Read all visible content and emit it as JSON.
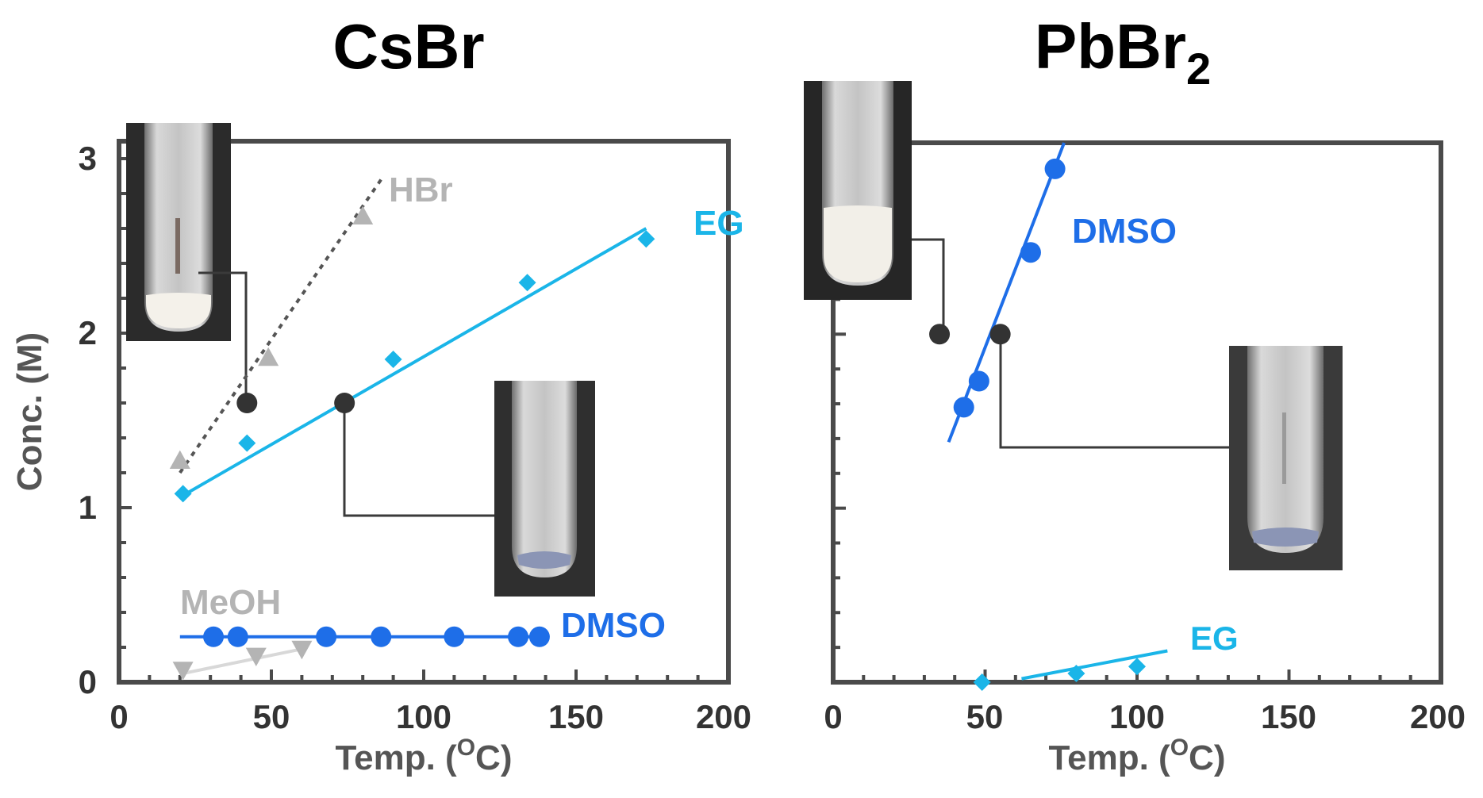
{
  "chart_data": [
    {
      "type": "scatter",
      "title": "CsBr",
      "title_sub": "",
      "xlabel": "Temp. (",
      "xlabel_sup": "O",
      "xlabel_end": "C)",
      "ylabel": "Conc. (M)",
      "xlim": [
        0,
        200
      ],
      "ylim": [
        0,
        3.1
      ],
      "xticks": [
        "0",
        "50",
        "100",
        "150",
        "200"
      ],
      "yticks": [
        "0",
        "1",
        "2",
        "3"
      ],
      "series": [
        {
          "name": "HBr",
          "color": "#b4b4b4",
          "marker": "triangle",
          "line": "dotted",
          "line_color": "#555555",
          "x": [
            20,
            49,
            80
          ],
          "y": [
            1.27,
            1.86,
            2.67
          ],
          "fit": [
            [
              20,
              1.2
            ],
            [
              86,
              2.88
            ]
          ]
        },
        {
          "name": "EG",
          "color": "#1ab5e8",
          "marker": "diamond",
          "line": "solid",
          "x": [
            21,
            42,
            90,
            134,
            173
          ],
          "y": [
            1.08,
            1.37,
            1.85,
            2.29,
            2.54
          ],
          "fit": [
            [
              21,
              1.07
            ],
            [
              173,
              2.6
            ]
          ]
        },
        {
          "name": "DMSO",
          "color": "#1e6ee8",
          "marker": "circle",
          "line": "solid",
          "x": [
            31,
            39,
            68,
            86,
            110,
            131,
            138
          ],
          "y": [
            0.26,
            0.26,
            0.26,
            0.26,
            0.26,
            0.26,
            0.26
          ],
          "fit": [
            [
              20,
              0.26
            ],
            [
              138,
              0.26
            ]
          ]
        },
        {
          "name": "MeOH",
          "color": "#b4b4b4",
          "marker": "triangle-down",
          "line": "solid",
          "line_color": "#d8d8d8",
          "x": [
            21,
            45,
            60
          ],
          "y": [
            0.07,
            0.15,
            0.19
          ],
          "fit": [
            [
              21,
              0.05
            ],
            [
              60,
              0.19
            ]
          ]
        }
      ],
      "label_positions": "HBr top-left, EG upper-right, DMSO lower-right, MeOH lower-left",
      "markers": [
        {
          "x": 42,
          "y": 1.6,
          "color": "#333333"
        },
        {
          "x": 74,
          "y": 1.6,
          "color": "#333333"
        }
      ],
      "insets": [
        "white precipitate vial (upper-left)",
        "clear solution vial (center)"
      ]
    },
    {
      "type": "scatter",
      "title": "PbBr",
      "title_sub": "2",
      "xlabel": "Temp. (",
      "xlabel_sup": "O",
      "xlabel_end": "C)",
      "ylabel": "",
      "xlim": [
        0,
        200
      ],
      "ylim": [
        0,
        3.1
      ],
      "xticks": [
        "0",
        "50",
        "100",
        "150",
        "200"
      ],
      "yticks": [],
      "series": [
        {
          "name": "DMSO",
          "color": "#1e6ee8",
          "marker": "circle",
          "line": "solid",
          "x": [
            43,
            48,
            65,
            73
          ],
          "y": [
            1.58,
            1.73,
            2.47,
            2.95
          ],
          "fit": [
            [
              38,
              1.38
            ],
            [
              76,
              3.1
            ]
          ]
        },
        {
          "name": "EG",
          "color": "#1ab5e8",
          "marker": "diamond",
          "line": "solid",
          "x": [
            49,
            80,
            100
          ],
          "y": [
            0.0,
            0.05,
            0.09
          ],
          "fit": [
            [
              62,
              0.02
            ],
            [
              110,
              0.18
            ]
          ]
        }
      ],
      "label_positions": "DMSO upper-right, EG lower-right",
      "markers": [
        {
          "x": 35,
          "y": 2.0,
          "color": "#333333"
        },
        {
          "x": 55,
          "y": 2.0,
          "color": "#333333"
        }
      ],
      "insets": [
        "white precipitate vial (top-left)",
        "clear solution vial (right)"
      ]
    }
  ]
}
